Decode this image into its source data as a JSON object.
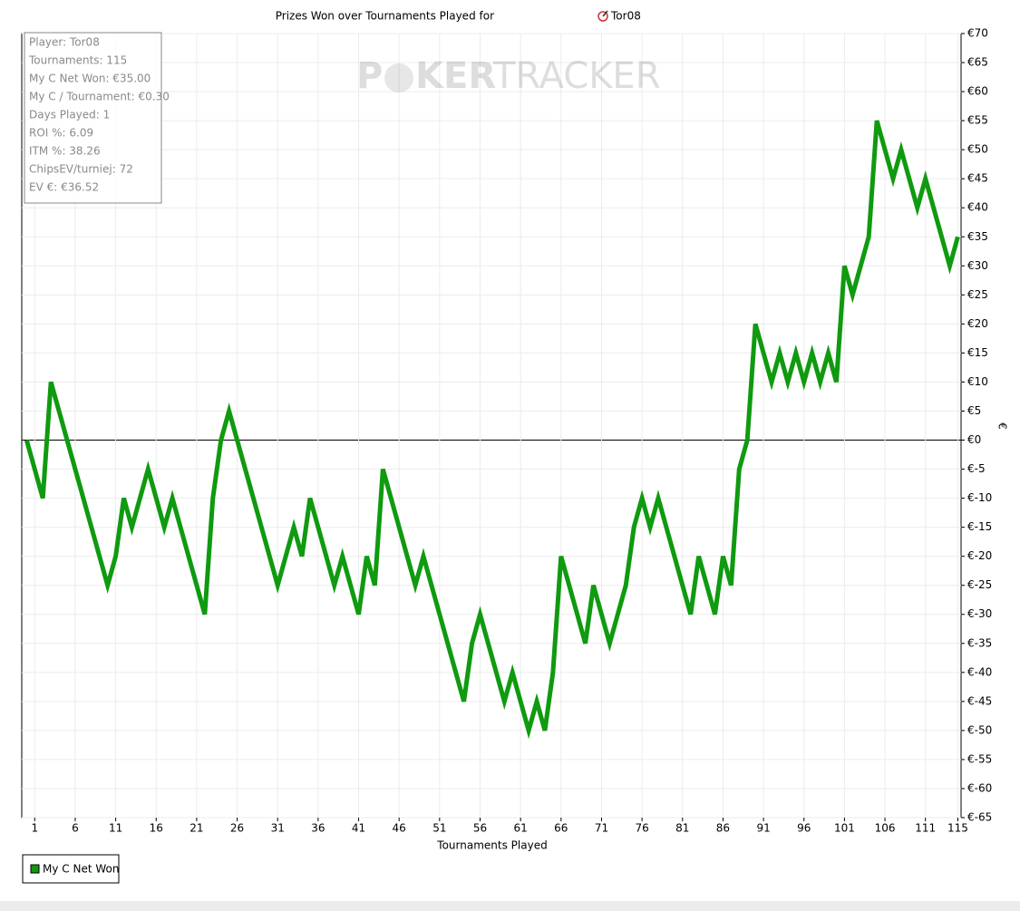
{
  "chart_data": {
    "type": "line",
    "title": "Prizes Won over Tournaments Played for",
    "title_player": "Tor08",
    "watermark": [
      "P",
      "KER",
      "TRACKER"
    ],
    "stats": [
      "Player: Tor08",
      "Tournaments: 115",
      "My C Net Won: €35.00",
      "My C / Tournament: €0.30",
      "Days Played: 1",
      "ROI %: 6.09",
      "ITM %: 38.26",
      "ChipsEV/turniej: 72",
      "EV €: €36.52"
    ],
    "xlabel": "Tournaments Played",
    "ylabel": "€",
    "x": [
      0,
      1,
      2,
      3,
      4,
      5,
      6,
      7,
      8,
      9,
      10,
      11,
      12,
      13,
      14,
      15,
      16,
      17,
      18,
      19,
      20,
      21,
      22,
      23,
      24,
      25,
      26,
      27,
      28,
      29,
      30,
      31,
      32,
      33,
      34,
      35,
      36,
      37,
      38,
      39,
      40,
      41,
      42,
      43,
      44,
      45,
      46,
      47,
      48,
      49,
      50,
      51,
      52,
      53,
      54,
      55,
      56,
      57,
      58,
      59,
      60,
      61,
      62,
      63,
      64,
      65,
      66,
      67,
      68,
      69,
      70,
      71,
      72,
      73,
      74,
      75,
      76,
      77,
      78,
      79,
      80,
      81,
      82,
      83,
      84,
      85,
      86,
      87,
      88,
      89,
      90,
      91,
      92,
      93,
      94,
      95,
      96,
      97,
      98,
      99,
      100,
      101,
      102,
      103,
      104,
      105,
      106,
      107,
      108,
      109,
      110,
      111,
      112,
      113,
      114,
      115
    ],
    "series": [
      {
        "name": "My C Net Won",
        "color": "#0f9a0f",
        "values": [
          0,
          -5,
          -10,
          10,
          5,
          0,
          -5,
          -10,
          -15,
          -20,
          -25,
          -20,
          -10,
          -15,
          -10,
          -5,
          -10,
          -15,
          -10,
          -15,
          -20,
          -25,
          -30,
          -10,
          0,
          5,
          0,
          -5,
          -10,
          -15,
          -20,
          -25,
          -20,
          -15,
          -20,
          -10,
          -15,
          -20,
          -25,
          -20,
          -25,
          -30,
          -20,
          -25,
          -5,
          -10,
          -15,
          -20,
          -25,
          -20,
          -25,
          -30,
          -35,
          -40,
          -45,
          -35,
          -30,
          -35,
          -40,
          -45,
          -40,
          -45,
          -50,
          -45,
          -50,
          -40,
          -20,
          -25,
          -30,
          -35,
          -25,
          -30,
          -35,
          -30,
          -25,
          -15,
          -10,
          -15,
          -10,
          -15,
          -20,
          -25,
          -30,
          -20,
          -25,
          -30,
          -20,
          -25,
          -5,
          0,
          20,
          15,
          10,
          15,
          10,
          15,
          10,
          15,
          10,
          15,
          10,
          30,
          25,
          30,
          35,
          55,
          50,
          45,
          50,
          45,
          40,
          45,
          40,
          35,
          30,
          35
        ]
      }
    ],
    "xlim": [
      -0.6,
      115.4
    ],
    "xticks": [
      1,
      6,
      11,
      16,
      21,
      26,
      31,
      36,
      41,
      46,
      51,
      56,
      61,
      66,
      71,
      76,
      81,
      86,
      91,
      96,
      101,
      106,
      111,
      115
    ],
    "ylim": [
      -65,
      70
    ],
    "yticks": [
      {
        "value": -65,
        "label": "€-65"
      },
      {
        "value": -60,
        "label": "€-60"
      },
      {
        "value": -55,
        "label": "€-55"
      },
      {
        "value": -50,
        "label": "€-50"
      },
      {
        "value": -45,
        "label": "€-45"
      },
      {
        "value": -40,
        "label": "€-40"
      },
      {
        "value": -35,
        "label": "€-35"
      },
      {
        "value": -30,
        "label": "€-30"
      },
      {
        "value": -25,
        "label": "€-25"
      },
      {
        "value": -20,
        "label": "€-20"
      },
      {
        "value": -15,
        "label": "€-15"
      },
      {
        "value": -10,
        "label": "€-10"
      },
      {
        "value": -5,
        "label": "€-5"
      },
      {
        "value": 0,
        "label": "€0"
      },
      {
        "value": 5,
        "label": "€5"
      },
      {
        "value": 10,
        "label": "€10"
      },
      {
        "value": 15,
        "label": "€15"
      },
      {
        "value": 20,
        "label": "€20"
      },
      {
        "value": 25,
        "label": "€25"
      },
      {
        "value": 30,
        "label": "€30"
      },
      {
        "value": 35,
        "label": "€35"
      },
      {
        "value": 40,
        "label": "€40"
      },
      {
        "value": 45,
        "label": "€45"
      },
      {
        "value": 50,
        "label": "€50"
      },
      {
        "value": 55,
        "label": "€55"
      },
      {
        "value": 60,
        "label": "€60"
      },
      {
        "value": 65,
        "label": "€65"
      },
      {
        "value": 70,
        "label": "€70"
      }
    ],
    "grid": true,
    "legend": "bottom-left"
  }
}
